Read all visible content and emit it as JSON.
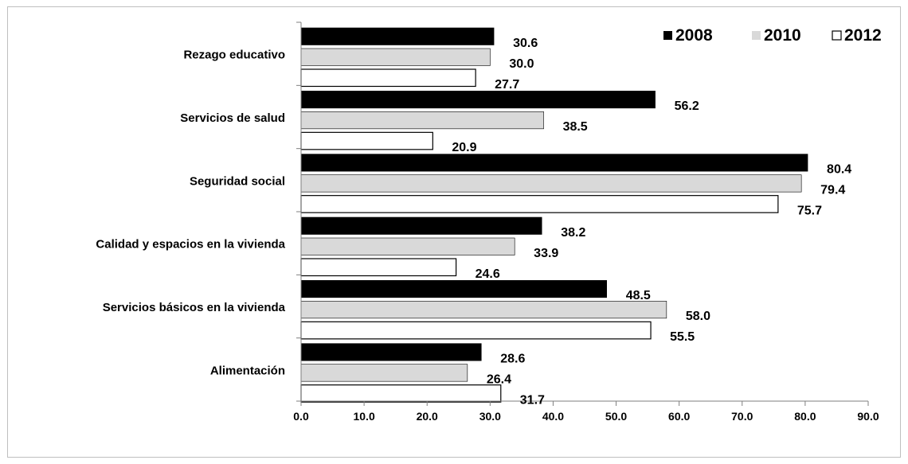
{
  "chart_data": {
    "type": "bar",
    "orientation": "horizontal",
    "categories": [
      "Rezago educativo",
      "Servicios de salud",
      "Seguridad social",
      "Calidad y espacios en la vivienda",
      "Servicios básicos en la vivienda",
      "Alimentación"
    ],
    "series": [
      {
        "name": "2008",
        "color": "#000000",
        "values": [
          30.6,
          56.2,
          80.4,
          38.2,
          48.5,
          28.6
        ],
        "labels": [
          "30.6",
          "56.2",
          "80.4",
          "38.2",
          "48.5",
          "28.6"
        ]
      },
      {
        "name": "2010",
        "color": "#d9d9d9",
        "values": [
          30.0,
          38.5,
          79.4,
          33.9,
          58.0,
          26.4
        ],
        "labels": [
          "30.0",
          "38.5",
          "79.4",
          "33.9",
          "58.0",
          "26.4"
        ]
      },
      {
        "name": "2012",
        "color": "#ffffff",
        "values": [
          27.7,
          20.9,
          75.7,
          24.6,
          55.5,
          31.7
        ],
        "labels": [
          "27.7",
          "20.9",
          "75.7",
          "24.6",
          "55.5",
          "31.7"
        ]
      }
    ],
    "xlim": [
      0,
      90
    ],
    "xticks": [
      "0.0",
      "10.0",
      "20.0",
      "30.0",
      "40.0",
      "50.0",
      "60.0",
      "70.0",
      "80.0",
      "90.0"
    ],
    "title": "",
    "xlabel": "",
    "ylabel": "",
    "grid": false,
    "legend_position": "top-right"
  }
}
